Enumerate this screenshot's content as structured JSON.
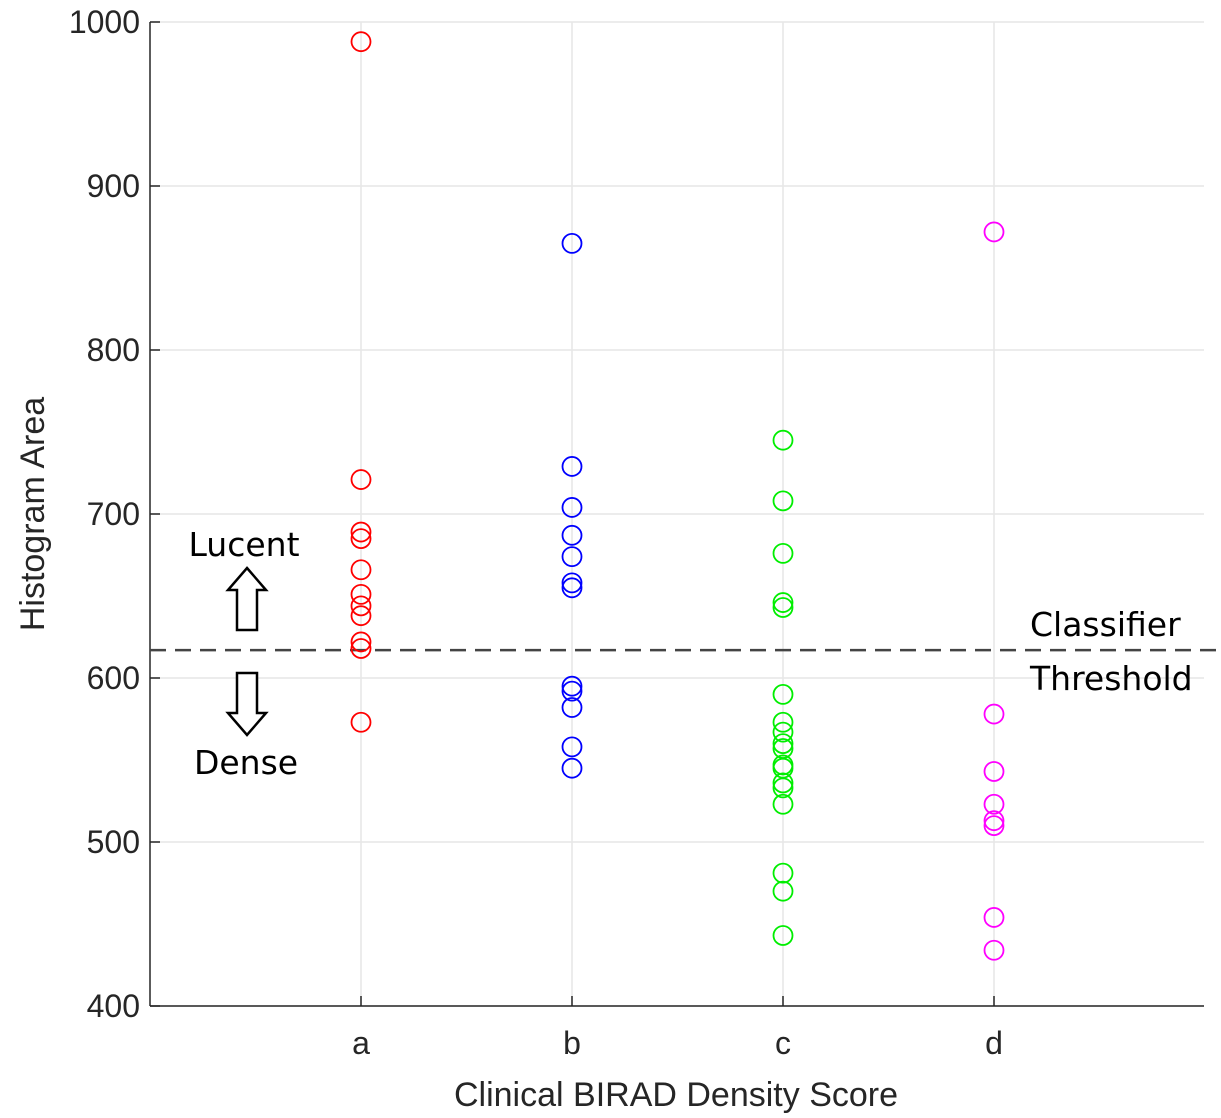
{
  "chart_data": {
    "type": "scatter",
    "title": "",
    "xlabel": "Clinical BIRAD Density Score",
    "ylabel": "Histogram Area",
    "categories": [
      "a",
      "b",
      "c",
      "d"
    ],
    "ylim": [
      400,
      1000
    ],
    "yticks": [
      "400",
      "500",
      "600",
      "700",
      "800",
      "900",
      "1000"
    ],
    "grid": true,
    "marker": "open-circle",
    "series": [
      {
        "category": "a",
        "color": "#ff0000",
        "values": [
          988,
          721,
          689,
          685,
          666,
          651,
          644,
          638,
          622,
          618,
          573
        ]
      },
      {
        "category": "b",
        "color": "#0000ff",
        "values": [
          865,
          729,
          704,
          687,
          674,
          658,
          655,
          595,
          592,
          582,
          558,
          545
        ]
      },
      {
        "category": "c",
        "color": "#00ee00",
        "values": [
          745,
          708,
          676,
          646,
          643,
          590,
          573,
          567,
          560,
          557,
          547,
          545,
          536,
          533,
          523,
          481,
          470,
          443
        ]
      },
      {
        "category": "d",
        "color": "#ff00ff",
        "values": [
          872,
          578,
          543,
          523,
          513,
          510,
          454,
          434
        ]
      }
    ],
    "threshold": {
      "value": 617,
      "style": "dashed",
      "color": "#444444"
    },
    "annotations": {
      "threshold_line1": "Classifier",
      "threshold_line2": "Threshold",
      "above_label": "Lucent",
      "below_label": "Dense"
    }
  }
}
